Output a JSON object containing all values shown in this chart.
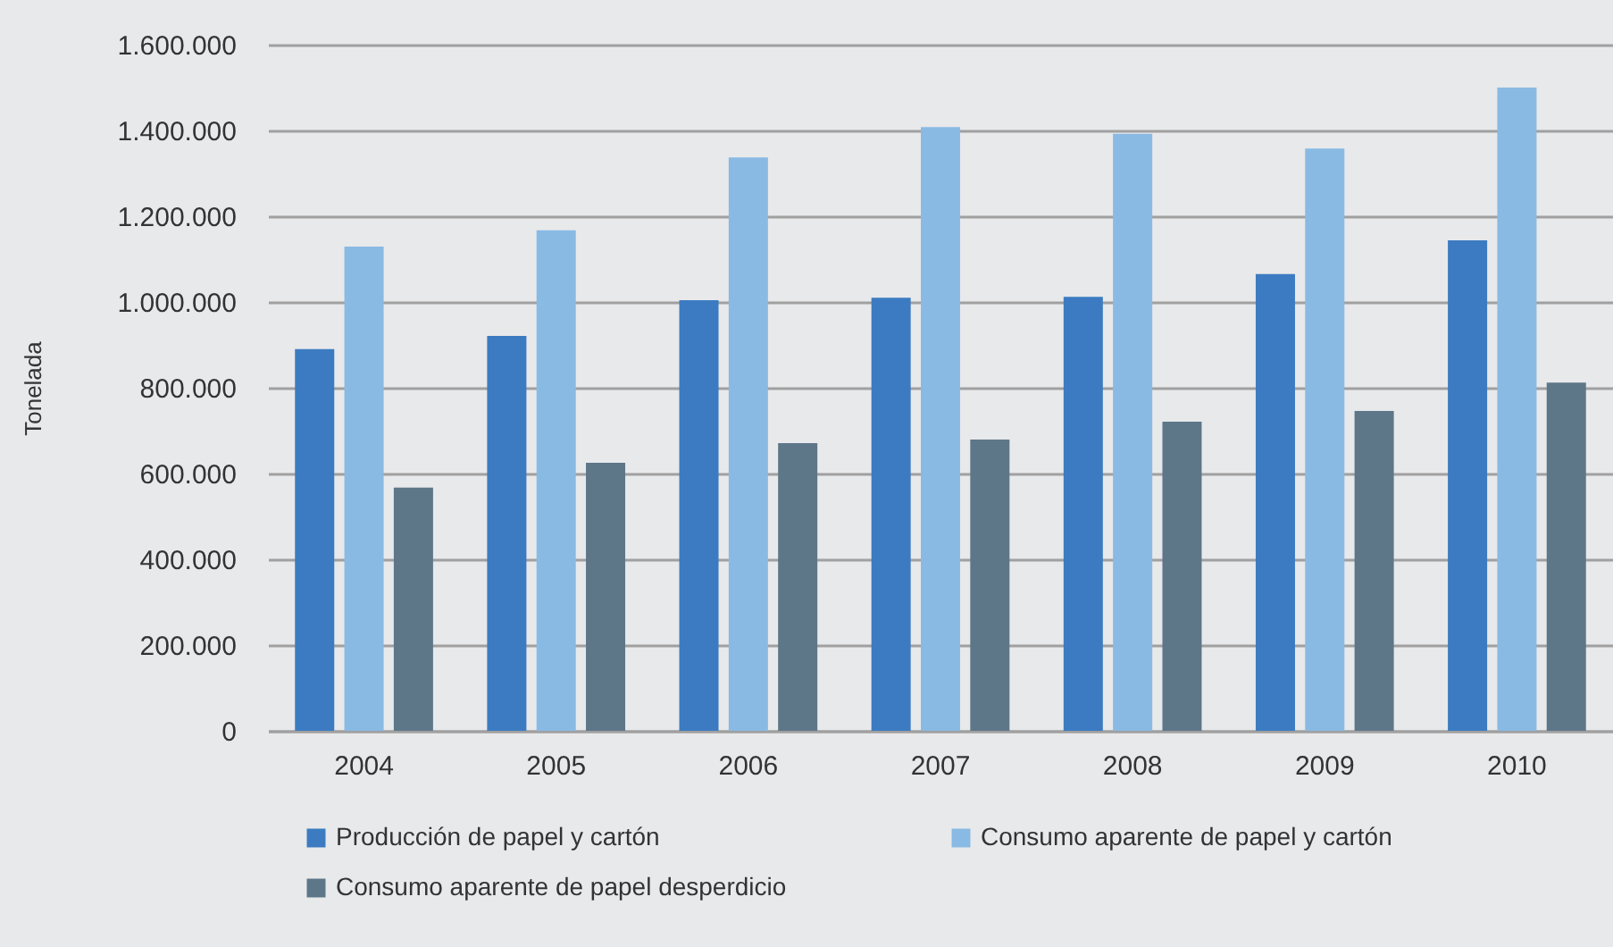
{
  "chart_data": {
    "type": "bar",
    "ylabel": "Tonelada",
    "categories": [
      "2004",
      "2005",
      "2006",
      "2007",
      "2008",
      "2009",
      "2010"
    ],
    "series": [
      {
        "name": "Producción de papel y cartón",
        "color": "#3c7bc1",
        "values": [
          890000,
          921000,
          1004000,
          1010000,
          1012000,
          1065000,
          1144000
        ]
      },
      {
        "name": "Consumo aparente de papel y cartón",
        "color": "#89bae3",
        "values": [
          1129000,
          1167000,
          1337000,
          1408000,
          1392000,
          1358000,
          1500000
        ]
      },
      {
        "name": "Consumo aparente de papel desperdicio",
        "color": "#5d7789",
        "values": [
          567000,
          625000,
          671000,
          679000,
          721000,
          746000,
          812000
        ]
      }
    ],
    "ylim": [
      0,
      1600000
    ],
    "yticks": [
      0,
      {
        "value": 200000,
        "label": "200.000"
      },
      {
        "value": 400000,
        "label": "400.000"
      },
      {
        "value": 600000,
        "label": "600.000"
      },
      {
        "value": 800000,
        "label": "800.000"
      },
      {
        "value": 1000000,
        "label": "1.000.000"
      },
      {
        "value": 1200000,
        "label": "1.200.000"
      },
      {
        "value": 1400000,
        "label": "1.400.000"
      },
      {
        "value": 1600000,
        "label": "1.600.000"
      }
    ],
    "grid": "y",
    "legend": "bottom"
  }
}
